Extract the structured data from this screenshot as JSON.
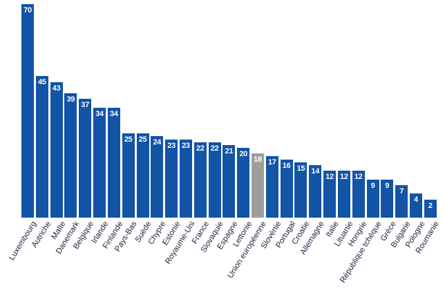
{
  "chart_data": {
    "type": "bar",
    "categories": [
      "Luxembourg",
      "Autriche",
      "Malte",
      "Danemark",
      "Belgique",
      "Irlande",
      "Finlande",
      "Pays-Bas",
      "Suède",
      "Chypre",
      "Estonie",
      "Royaume-Uni",
      "France",
      "Slovaquie",
      "Espagne",
      "Lettonie",
      "Union européenne",
      "Slovénie",
      "Portugal",
      "Croatie",
      "Allemagne",
      "Italie",
      "Lituanie",
      "Hongrie",
      "République tchèque",
      "Grèce",
      "Bulgarie",
      "Pologne",
      "Roumanie"
    ],
    "values": [
      70,
      45,
      43,
      39,
      37,
      34,
      34,
      25,
      25,
      24,
      23,
      23,
      22,
      22,
      21,
      20,
      18,
      17,
      16,
      15,
      14,
      12,
      12,
      12,
      9,
      9,
      7,
      4,
      2
    ],
    "highlight_category": "Union européenne",
    "bar_color": "#1254a6",
    "highlight_bar_color": "#9e9e9e",
    "value_label_color": "#ffffff",
    "axis_label_color": "#1f1f3d",
    "value_labels_position": "inside-top",
    "ylim": [
      0,
      70
    ],
    "grid": false,
    "legend": false,
    "xlabel": "",
    "ylabel": ""
  }
}
